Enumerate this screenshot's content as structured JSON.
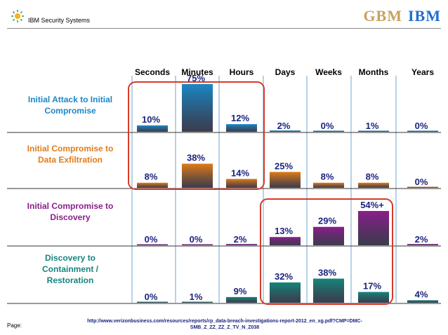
{
  "header": {
    "title": "IBM Security Systems",
    "brand_left": "GBM",
    "brand_right": "IBM"
  },
  "chart_data": {
    "type": "bar",
    "title": "",
    "columns": [
      "Seconds",
      "Minutes",
      "Hours",
      "Days",
      "Weeks",
      "Months",
      "Years"
    ],
    "ylim": [
      0,
      75
    ],
    "series": [
      {
        "name": "Initial Attack to Initial Compromise",
        "color": "#1b87c6",
        "values": [
          10,
          75,
          12,
          2,
          0,
          1,
          0
        ],
        "labels": [
          "10%",
          "75%",
          "12%",
          "2%",
          "0%",
          "1%",
          "0%"
        ]
      },
      {
        "name": "Initial Compromise to Data Exfiltration",
        "color": "#e07b1a",
        "values": [
          8,
          38,
          14,
          25,
          8,
          8,
          0
        ],
        "labels": [
          "8%",
          "38%",
          "14%",
          "25%",
          "8%",
          "8%",
          "0%"
        ]
      },
      {
        "name": "Initial Compromise to Discovery",
        "color": "#8a1e8c",
        "values": [
          0,
          0,
          2,
          13,
          29,
          54,
          2
        ],
        "labels": [
          "0%",
          "0%",
          "2%",
          "13%",
          "29%",
          "54%+",
          "2%"
        ]
      },
      {
        "name": "Discovery to Containment / Restoration",
        "color": "#15857c",
        "values": [
          0,
          1,
          9,
          32,
          38,
          17,
          4
        ],
        "labels": [
          "0%",
          "1%",
          "9%",
          "32%",
          "38%",
          "17%",
          "4%"
        ]
      }
    ],
    "row_labels": [
      [
        "Initial Attack to Initial",
        "Compromise"
      ],
      [
        "Initial Compromise to",
        "Data Exfiltration"
      ],
      [
        "Initial Compromise to",
        "Discovery"
      ],
      [
        "Discovery to",
        "Containment /",
        "Restoration"
      ]
    ],
    "row_label_colors": [
      "#1b87c6",
      "#e07b1a",
      "#8a1e8c",
      "#15857c"
    ],
    "highlight_color": "#d63a2a"
  },
  "footer": {
    "url_line1": "http://www.verizonbusiness.com/resources/reports/rp_data-breach-investigations-report-2012_en_xg.pdf?CMP=DMC-",
    "url_line2": "SMB_Z_ZZ_ZZ_Z_TV_N_Z038",
    "page_label": "Page:"
  }
}
